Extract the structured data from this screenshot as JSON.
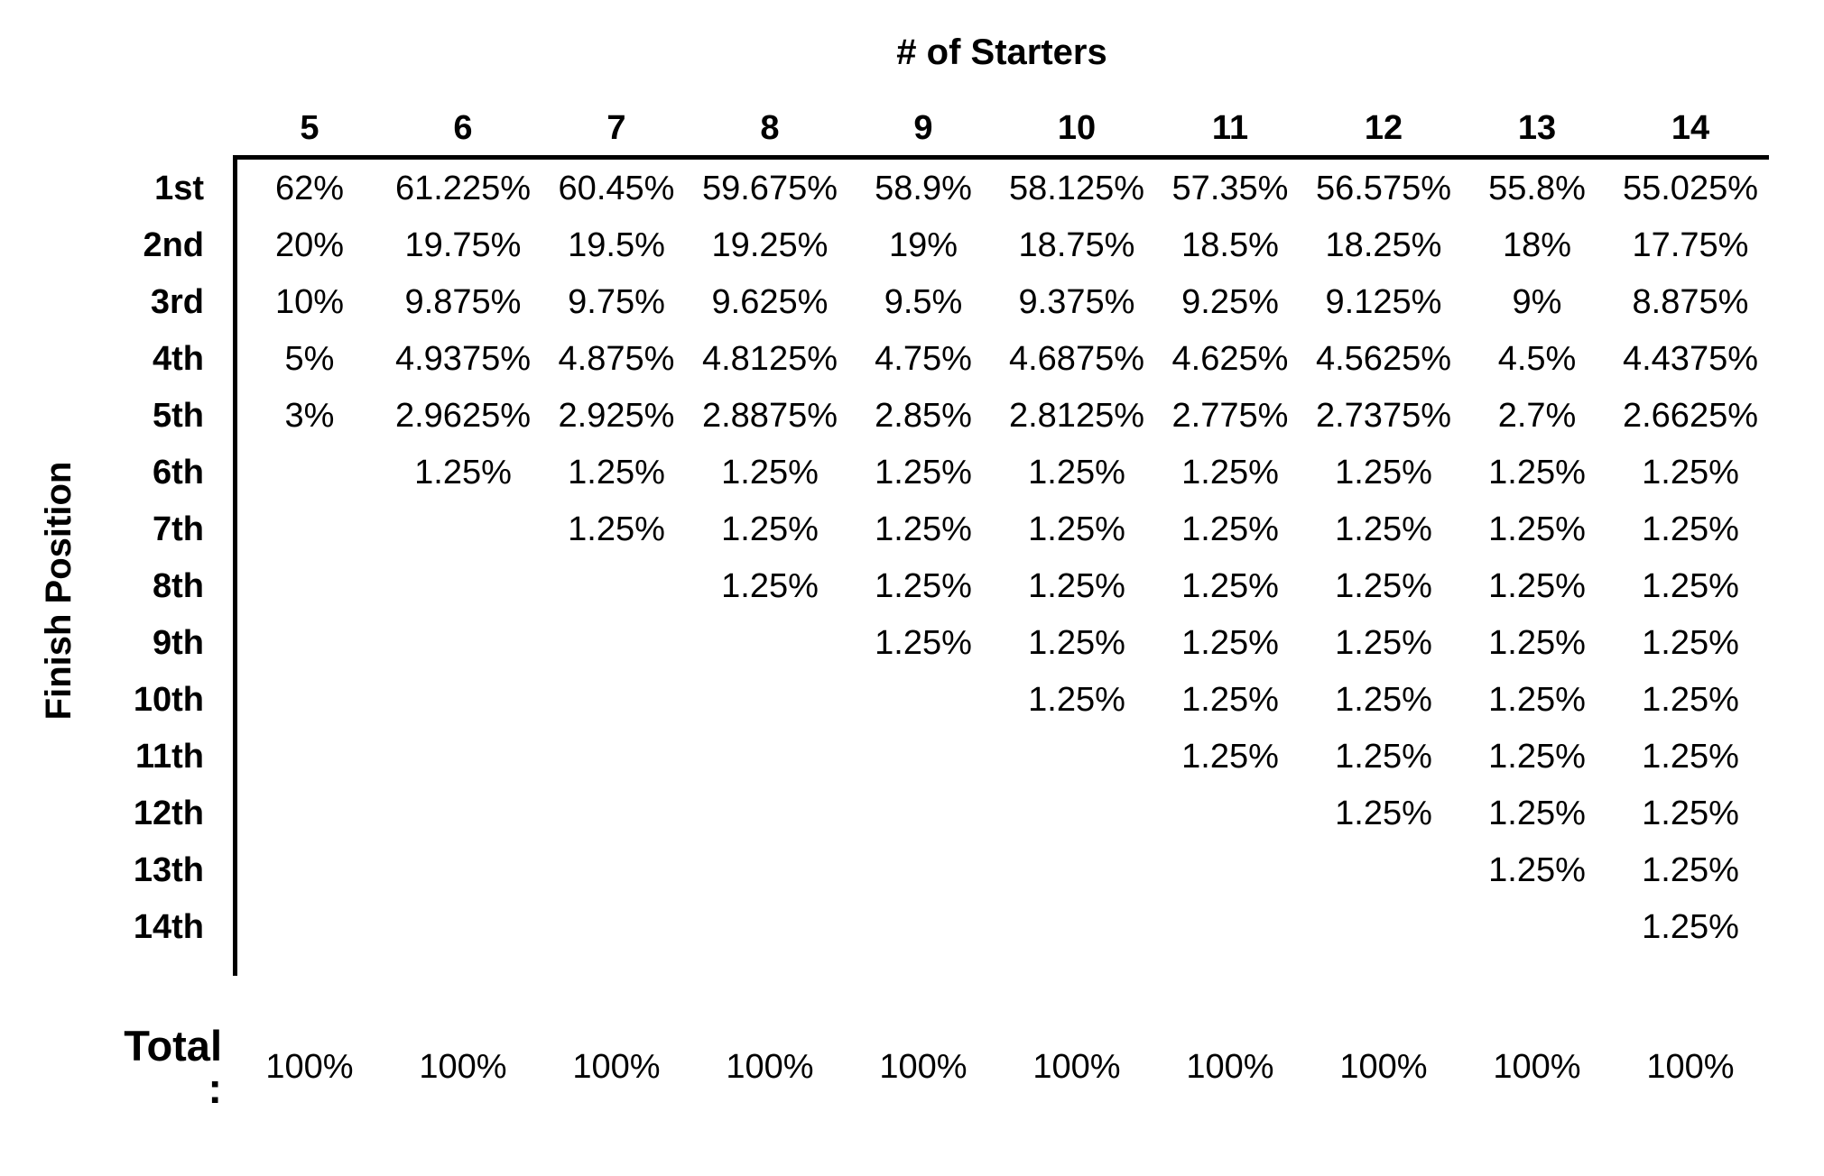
{
  "table": {
    "title": "# of Starters",
    "y_axis_label": "Finish Position",
    "columns": [
      "5",
      "6",
      "7",
      "8",
      "9",
      "10",
      "11",
      "12",
      "13",
      "14"
    ],
    "rows": [
      {
        "label": "1st",
        "values": [
          "62%",
          "61.225%",
          "60.45%",
          "59.675%",
          "58.9%",
          "58.125%",
          "57.35%",
          "56.575%",
          "55.8%",
          "55.025%"
        ]
      },
      {
        "label": "2nd",
        "values": [
          "20%",
          "19.75%",
          "19.5%",
          "19.25%",
          "19%",
          "18.75%",
          "18.5%",
          "18.25%",
          "18%",
          "17.75%"
        ]
      },
      {
        "label": "3rd",
        "values": [
          "10%",
          "9.875%",
          "9.75%",
          "9.625%",
          "9.5%",
          "9.375%",
          "9.25%",
          "9.125%",
          "9%",
          "8.875%"
        ]
      },
      {
        "label": "4th",
        "values": [
          "5%",
          "4.9375%",
          "4.875%",
          "4.8125%",
          "4.75%",
          "4.6875%",
          "4.625%",
          "4.5625%",
          "4.5%",
          "4.4375%"
        ]
      },
      {
        "label": "5th",
        "values": [
          "3%",
          "2.9625%",
          "2.925%",
          "2.8875%",
          "2.85%",
          "2.8125%",
          "2.775%",
          "2.7375%",
          "2.7%",
          "2.6625%"
        ]
      },
      {
        "label": "6th",
        "values": [
          "",
          "1.25%",
          "1.25%",
          "1.25%",
          "1.25%",
          "1.25%",
          "1.25%",
          "1.25%",
          "1.25%",
          "1.25%"
        ]
      },
      {
        "label": "7th",
        "values": [
          "",
          "",
          "1.25%",
          "1.25%",
          "1.25%",
          "1.25%",
          "1.25%",
          "1.25%",
          "1.25%",
          "1.25%"
        ]
      },
      {
        "label": "8th",
        "values": [
          "",
          "",
          "",
          "1.25%",
          "1.25%",
          "1.25%",
          "1.25%",
          "1.25%",
          "1.25%",
          "1.25%"
        ]
      },
      {
        "label": "9th",
        "values": [
          "",
          "",
          "",
          "",
          "1.25%",
          "1.25%",
          "1.25%",
          "1.25%",
          "1.25%",
          "1.25%"
        ]
      },
      {
        "label": "10th",
        "values": [
          "",
          "",
          "",
          "",
          "",
          "1.25%",
          "1.25%",
          "1.25%",
          "1.25%",
          "1.25%"
        ]
      },
      {
        "label": "11th",
        "values": [
          "",
          "",
          "",
          "",
          "",
          "",
          "1.25%",
          "1.25%",
          "1.25%",
          "1.25%"
        ]
      },
      {
        "label": "12th",
        "values": [
          "",
          "",
          "",
          "",
          "",
          "",
          "",
          "1.25%",
          "1.25%",
          "1.25%"
        ]
      },
      {
        "label": "13th",
        "values": [
          "",
          "",
          "",
          "",
          "",
          "",
          "",
          "",
          "1.25%",
          "1.25%"
        ]
      },
      {
        "label": "14th",
        "values": [
          "",
          "",
          "",
          "",
          "",
          "",
          "",
          "",
          "",
          "1.25%"
        ]
      }
    ],
    "total_label": "Total :",
    "total_values": [
      "100%",
      "100%",
      "100%",
      "100%",
      "100%",
      "100%",
      "100%",
      "100%",
      "100%",
      "100%"
    ]
  },
  "colors": {
    "text": "#000000",
    "background": "#ffffff",
    "border": "#000000"
  },
  "chart_data": {
    "type": "table",
    "title": "# of Starters",
    "row_axis_label": "Finish Position",
    "columns": [
      5,
      6,
      7,
      8,
      9,
      10,
      11,
      12,
      13,
      14
    ],
    "rows": [
      {
        "finish_position": "1st",
        "payout_pct": [
          62,
          61.225,
          60.45,
          59.675,
          58.9,
          58.125,
          57.35,
          56.575,
          55.8,
          55.025
        ]
      },
      {
        "finish_position": "2nd",
        "payout_pct": [
          20,
          19.75,
          19.5,
          19.25,
          19,
          18.75,
          18.5,
          18.25,
          18,
          17.75
        ]
      },
      {
        "finish_position": "3rd",
        "payout_pct": [
          10,
          9.875,
          9.75,
          9.625,
          9.5,
          9.375,
          9.25,
          9.125,
          9,
          8.875
        ]
      },
      {
        "finish_position": "4th",
        "payout_pct": [
          5,
          4.9375,
          4.875,
          4.8125,
          4.75,
          4.6875,
          4.625,
          4.5625,
          4.5,
          4.4375
        ]
      },
      {
        "finish_position": "5th",
        "payout_pct": [
          3,
          2.9625,
          2.925,
          2.8875,
          2.85,
          2.8125,
          2.775,
          2.7375,
          2.7,
          2.6625
        ]
      },
      {
        "finish_position": "6th",
        "payout_pct": [
          null,
          1.25,
          1.25,
          1.25,
          1.25,
          1.25,
          1.25,
          1.25,
          1.25,
          1.25
        ]
      },
      {
        "finish_position": "7th",
        "payout_pct": [
          null,
          null,
          1.25,
          1.25,
          1.25,
          1.25,
          1.25,
          1.25,
          1.25,
          1.25
        ]
      },
      {
        "finish_position": "8th",
        "payout_pct": [
          null,
          null,
          null,
          1.25,
          1.25,
          1.25,
          1.25,
          1.25,
          1.25,
          1.25
        ]
      },
      {
        "finish_position": "9th",
        "payout_pct": [
          null,
          null,
          null,
          null,
          1.25,
          1.25,
          1.25,
          1.25,
          1.25,
          1.25
        ]
      },
      {
        "finish_position": "10th",
        "payout_pct": [
          null,
          null,
          null,
          null,
          null,
          1.25,
          1.25,
          1.25,
          1.25,
          1.25
        ]
      },
      {
        "finish_position": "11th",
        "payout_pct": [
          null,
          null,
          null,
          null,
          null,
          null,
          1.25,
          1.25,
          1.25,
          1.25
        ]
      },
      {
        "finish_position": "12th",
        "payout_pct": [
          null,
          null,
          null,
          null,
          null,
          null,
          null,
          1.25,
          1.25,
          1.25
        ]
      },
      {
        "finish_position": "13th",
        "payout_pct": [
          null,
          null,
          null,
          null,
          null,
          null,
          null,
          null,
          1.25,
          1.25
        ]
      },
      {
        "finish_position": "14th",
        "payout_pct": [
          null,
          null,
          null,
          null,
          null,
          null,
          null,
          null,
          null,
          1.25
        ]
      }
    ],
    "totals": [
      100,
      100,
      100,
      100,
      100,
      100,
      100,
      100,
      100,
      100
    ]
  }
}
